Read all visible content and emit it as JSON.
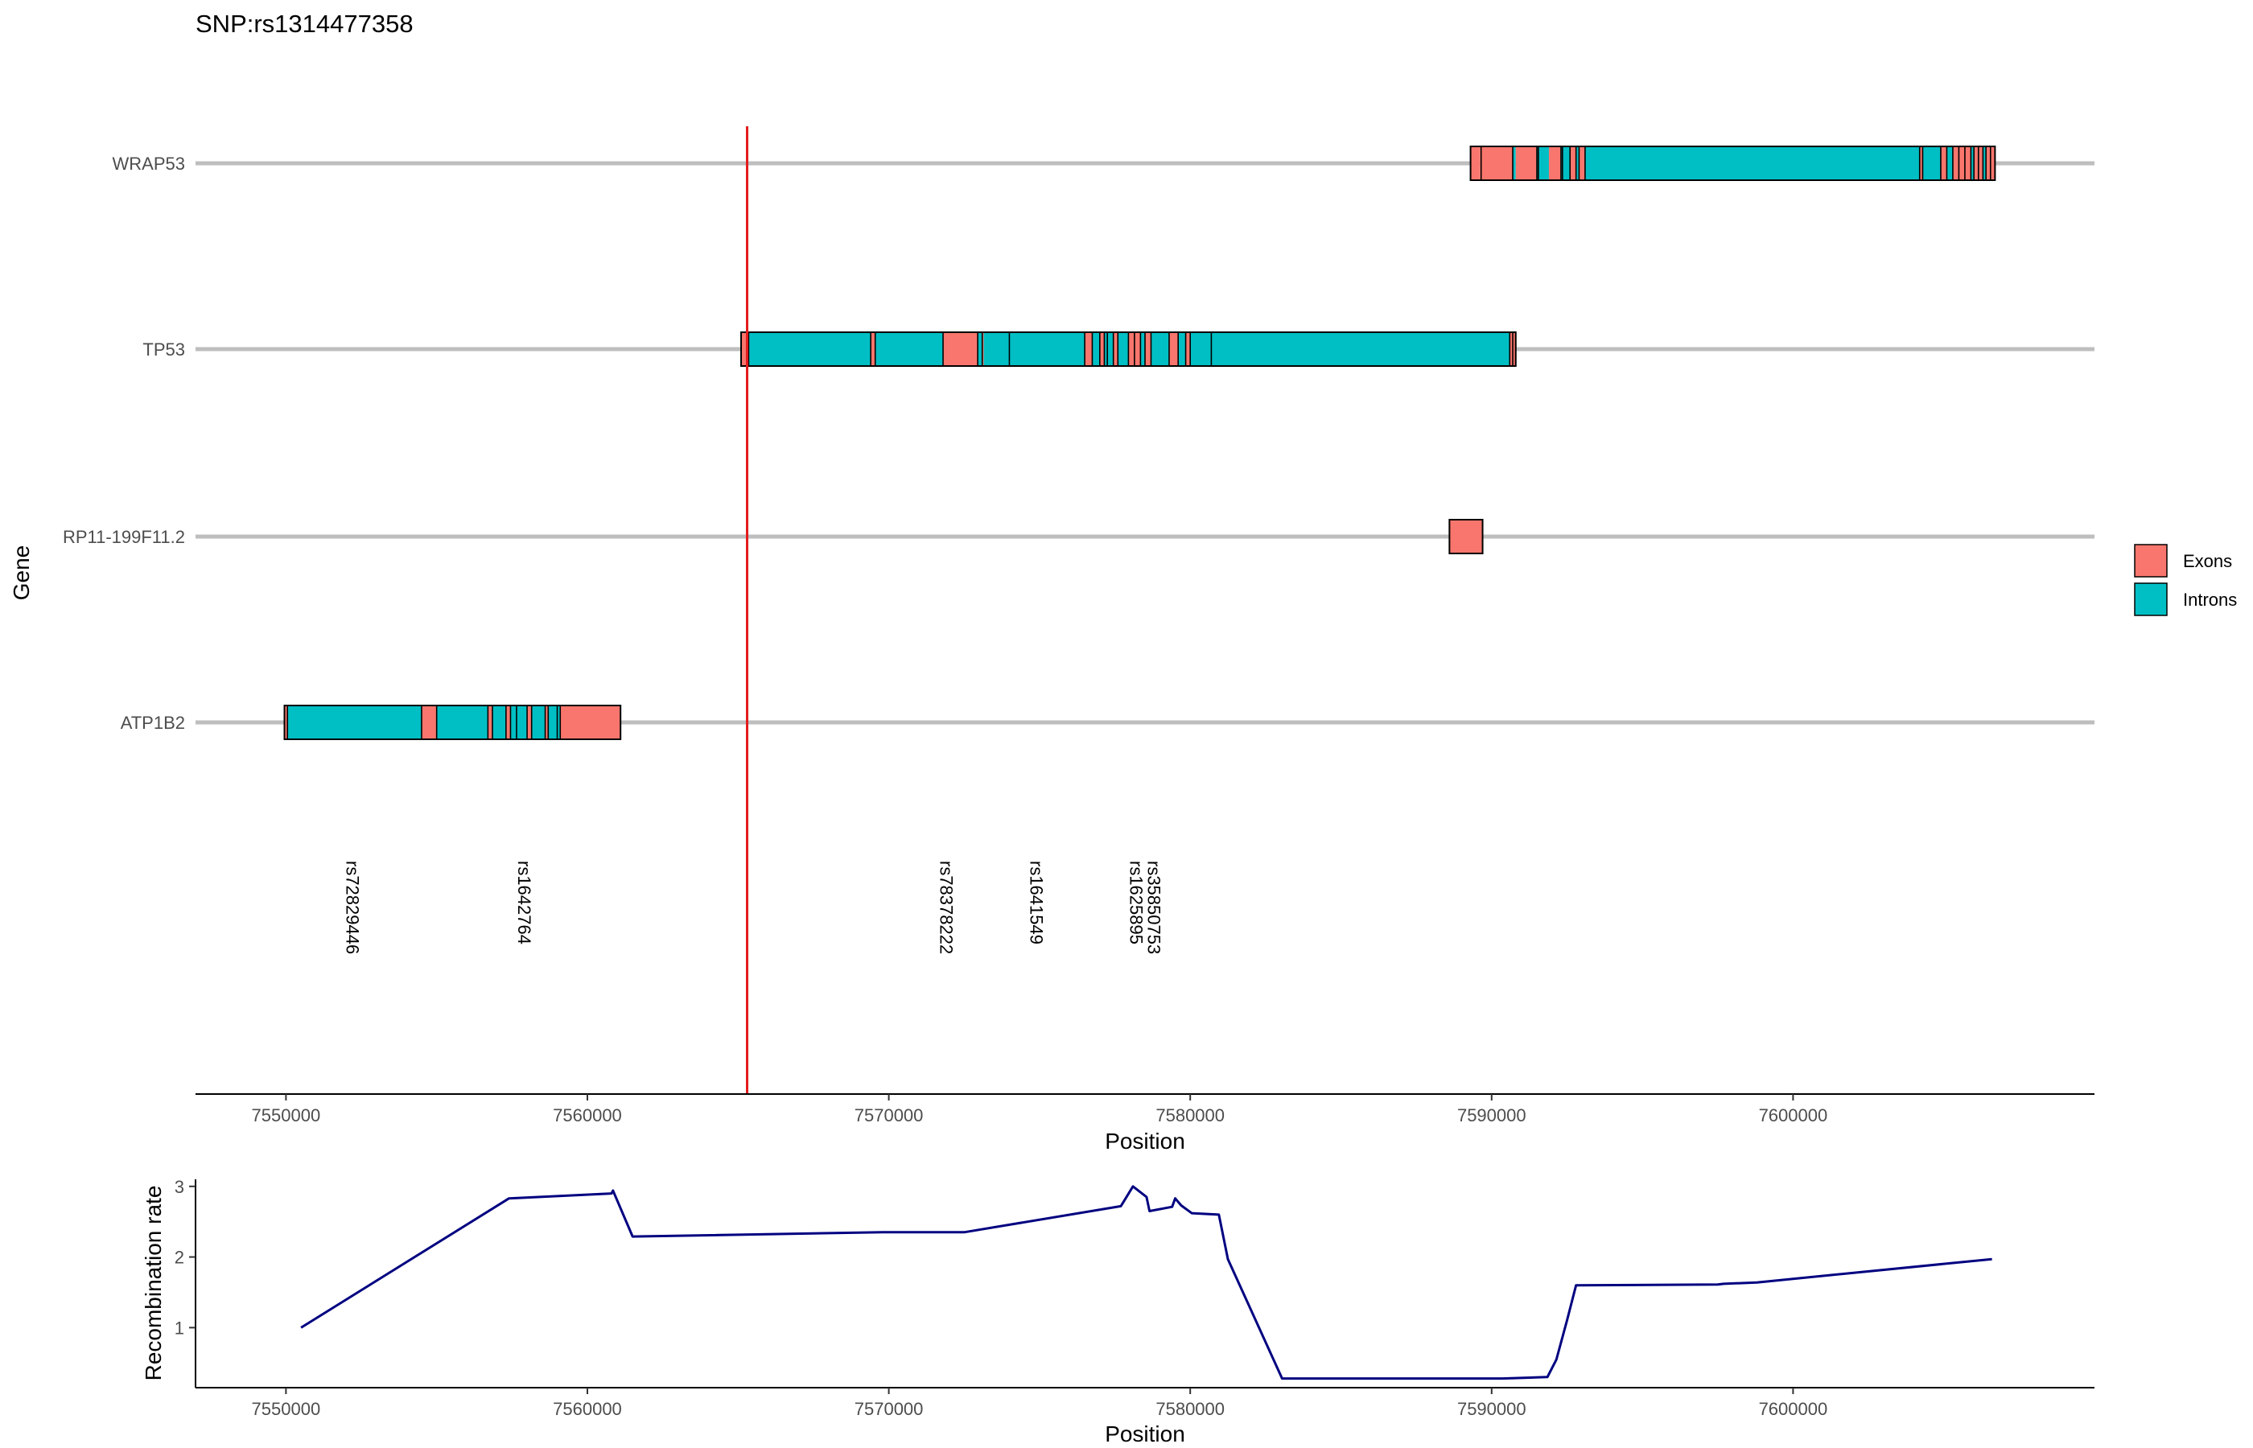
{
  "title": "SNP:rs1314477358",
  "colors": {
    "exon": "#F8766D",
    "intron": "#00BFC4",
    "snp_line": "#E41A1C",
    "recomb_line": "#000080",
    "gene_track": "#BEBEBE"
  },
  "legend": {
    "items": [
      {
        "label": "Exons",
        "key": "exon"
      },
      {
        "label": "Introns",
        "key": "intron"
      }
    ]
  },
  "chart_data": [
    {
      "type": "gene_track",
      "xlabel": "Position",
      "ylabel": "Gene",
      "xlim": [
        7547000,
        7610000
      ],
      "xticks": [
        7550000,
        7560000,
        7570000,
        7580000,
        7590000,
        7600000
      ],
      "xtick_labels": [
        "7550000",
        "7560000",
        "7570000",
        "7580000",
        "7590000",
        "7600000"
      ],
      "target_snp_position": 7565300,
      "genes": [
        {
          "name": "WRAP53",
          "features": [
            {
              "type": "exon",
              "start": 7589300,
              "end": 7589600
            },
            {
              "type": "exon",
              "start": 7589600,
              "end": 7590700
            },
            {
              "type": "intron",
              "start": 7590700,
              "end": 7590800
            },
            {
              "type": "exon",
              "start": 7590800,
              "end": 7591500
            },
            {
              "type": "intron",
              "start": 7591500,
              "end": 7591900
            },
            {
              "type": "exon",
              "start": 7591900,
              "end": 7592300
            },
            {
              "type": "intron",
              "start": 7592300,
              "end": 7592600
            },
            {
              "type": "exon",
              "start": 7592600,
              "end": 7592800
            },
            {
              "type": "intron",
              "start": 7592800,
              "end": 7592900
            },
            {
              "type": "exon",
              "start": 7592900,
              "end": 7593100
            },
            {
              "type": "intron",
              "start": 7593100,
              "end": 7604200
            },
            {
              "type": "exon",
              "start": 7604200,
              "end": 7604300
            },
            {
              "type": "intron",
              "start": 7604300,
              "end": 7604900
            },
            {
              "type": "exon",
              "start": 7604900,
              "end": 7605100
            },
            {
              "type": "intron",
              "start": 7605100,
              "end": 7605300
            },
            {
              "type": "exon",
              "start": 7605300,
              "end": 7605900
            },
            {
              "type": "intron",
              "start": 7605900,
              "end": 7606000
            },
            {
              "type": "exon",
              "start": 7606000,
              "end": 7606300
            },
            {
              "type": "intron",
              "start": 7606300,
              "end": 7606400
            },
            {
              "type": "exon",
              "start": 7606400,
              "end": 7606700
            }
          ],
          "boundaries": [
            7589650,
            7590700,
            7591500,
            7591550,
            7592300,
            7592350,
            7592600,
            7592800,
            7592900,
            7593100,
            7604200,
            7604300,
            7604900,
            7605100,
            7605300,
            7605500,
            7605700,
            7605900,
            7606000,
            7606150,
            7606300,
            7606400,
            7606550
          ]
        },
        {
          "name": "TP53",
          "features": [
            {
              "type": "exon",
              "start": 7565100,
              "end": 7565350
            },
            {
              "type": "intron",
              "start": 7565350,
              "end": 7569400
            },
            {
              "type": "exon",
              "start": 7569400,
              "end": 7569550
            },
            {
              "type": "intron",
              "start": 7569550,
              "end": 7571800
            },
            {
              "type": "exon",
              "start": 7571800,
              "end": 7572950
            },
            {
              "type": "intron",
              "start": 7572950,
              "end": 7573100
            },
            {
              "type": "exon",
              "start": 7573100,
              "end": 7573150
            },
            {
              "type": "intron",
              "start": 7573150,
              "end": 7574000
            },
            {
              "type": "intron",
              "start": 7574000,
              "end": 7576500
            },
            {
              "type": "exon",
              "start": 7576500,
              "end": 7576750
            },
            {
              "type": "intron",
              "start": 7576750,
              "end": 7577000
            },
            {
              "type": "exon",
              "start": 7577000,
              "end": 7577150
            },
            {
              "type": "intron",
              "start": 7577150,
              "end": 7577450
            },
            {
              "type": "exon",
              "start": 7577450,
              "end": 7577600
            },
            {
              "type": "intron",
              "start": 7577600,
              "end": 7577950
            },
            {
              "type": "exon",
              "start": 7577950,
              "end": 7578350
            },
            {
              "type": "intron",
              "start": 7578350,
              "end": 7578500
            },
            {
              "type": "exon",
              "start": 7578500,
              "end": 7578700
            },
            {
              "type": "intron",
              "start": 7578700,
              "end": 7579300
            },
            {
              "type": "exon",
              "start": 7579300,
              "end": 7579600
            },
            {
              "type": "intron",
              "start": 7579600,
              "end": 7579850
            },
            {
              "type": "exon",
              "start": 7579850,
              "end": 7580000
            },
            {
              "type": "intron",
              "start": 7580000,
              "end": 7590600
            },
            {
              "type": "exon",
              "start": 7590600,
              "end": 7590800
            }
          ],
          "boundaries": [
            7565350,
            7569400,
            7569550,
            7571800,
            7572950,
            7573100,
            7574000,
            7576500,
            7576750,
            7577000,
            7577150,
            7577250,
            7577450,
            7577600,
            7577950,
            7578150,
            7578350,
            7578500,
            7578700,
            7579300,
            7579600,
            7579850,
            7580000,
            7580700,
            7590600,
            7590700
          ]
        },
        {
          "name": "RP11-199F11.2",
          "features": [
            {
              "type": "exon",
              "start": 7588600,
              "end": 7589700
            }
          ],
          "boundaries": []
        },
        {
          "name": "ATP1B2",
          "features": [
            {
              "type": "exon",
              "start": 7549950,
              "end": 7550050
            },
            {
              "type": "intron",
              "start": 7550050,
              "end": 7554500
            },
            {
              "type": "exon",
              "start": 7554500,
              "end": 7555000
            },
            {
              "type": "intron",
              "start": 7555000,
              "end": 7556700
            },
            {
              "type": "exon",
              "start": 7556700,
              "end": 7556850
            },
            {
              "type": "intron",
              "start": 7556850,
              "end": 7557300
            },
            {
              "type": "exon",
              "start": 7557300,
              "end": 7557450
            },
            {
              "type": "intron",
              "start": 7557450,
              "end": 7558000
            },
            {
              "type": "exon",
              "start": 7558000,
              "end": 7558150
            },
            {
              "type": "intron",
              "start": 7558150,
              "end": 7558600
            },
            {
              "type": "exon",
              "start": 7558600,
              "end": 7558700
            },
            {
              "type": "intron",
              "start": 7558700,
              "end": 7559100
            },
            {
              "type": "exon",
              "start": 7559100,
              "end": 7561100
            }
          ],
          "boundaries": [
            7550050,
            7554500,
            7555000,
            7556700,
            7556850,
            7557300,
            7557450,
            7557650,
            7558000,
            7558150,
            7558600,
            7558700,
            7559000,
            7559100
          ]
        }
      ],
      "snps": [
        {
          "id": "rs72829446",
          "position": 7552000
        },
        {
          "id": "rs1642764",
          "position": 7557700
        },
        {
          "id": "rs78378222",
          "position": 7571700
        },
        {
          "id": "rs1641549",
          "position": 7574700
        },
        {
          "id": "rs1625895",
          "position": 7578000
        },
        {
          "id": "rs35850753",
          "position": 7578600
        }
      ]
    },
    {
      "type": "line",
      "xlabel": "Position",
      "ylabel": "Recombination rate",
      "xlim": [
        7547000,
        7610000
      ],
      "ylim": [
        0.15,
        3.1
      ],
      "xticks": [
        7550000,
        7560000,
        7570000,
        7580000,
        7590000,
        7600000
      ],
      "xtick_labels": [
        "7550000",
        "7560000",
        "7570000",
        "7580000",
        "7590000",
        "7600000"
      ],
      "yticks": [
        1,
        2,
        3
      ],
      "ytick_labels": [
        "1",
        "2",
        "3"
      ],
      "x": [
        7550500,
        7557400,
        7560800,
        7560850,
        7561500,
        7569800,
        7572500,
        7577700,
        7578100,
        7578550,
        7578650,
        7579400,
        7579500,
        7579700,
        7580050,
        7580950,
        7581250,
        7583050,
        7590350,
        7591850,
        7592150,
        7592500,
        7592800,
        7597500,
        7597700,
        7598800,
        7606600
      ],
      "y": [
        1.0,
        2.83,
        2.9,
        2.94,
        2.29,
        2.35,
        2.35,
        2.72,
        3.0,
        2.85,
        2.65,
        2.71,
        2.83,
        2.73,
        2.62,
        2.6,
        1.97,
        0.28,
        0.28,
        0.3,
        0.55,
        1.1,
        1.6,
        1.61,
        1.62,
        1.64,
        1.97
      ]
    }
  ]
}
